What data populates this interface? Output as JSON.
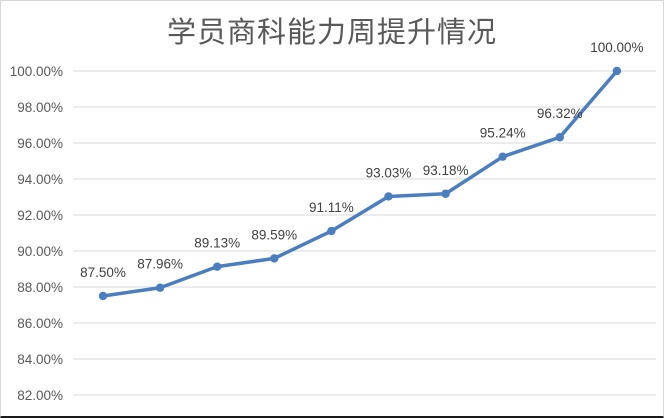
{
  "chart_data": {
    "type": "line",
    "title": "学员商科能力周提升情况",
    "values": [
      87.5,
      87.96,
      89.13,
      89.59,
      91.11,
      93.03,
      93.18,
      95.24,
      96.32,
      100.0
    ],
    "point_labels": [
      "87.50%",
      "87.96%",
      "89.13%",
      "89.59%",
      "91.11%",
      "93.03%",
      "93.18%",
      "95.24%",
      "96.32%",
      "100.00%"
    ],
    "yticks": [
      "100.00%",
      "98.00%",
      "96.00%",
      "94.00%",
      "92.00%",
      "90.00%",
      "88.00%",
      "86.00%",
      "84.00%",
      "82.00%"
    ],
    "ytick_values": [
      100,
      98,
      96,
      94,
      92,
      90,
      88,
      86,
      84,
      82
    ],
    "ylim": [
      82,
      100
    ],
    "grid": true,
    "legend": "none",
    "xlabel": "",
    "ylabel": "",
    "colors": {
      "line": "#4a7ebf",
      "marker": "#4a7ebf",
      "gridline": "#d9d9d9",
      "axis_label": "#595959",
      "data_label": "#404040",
      "title": "#595959"
    }
  }
}
